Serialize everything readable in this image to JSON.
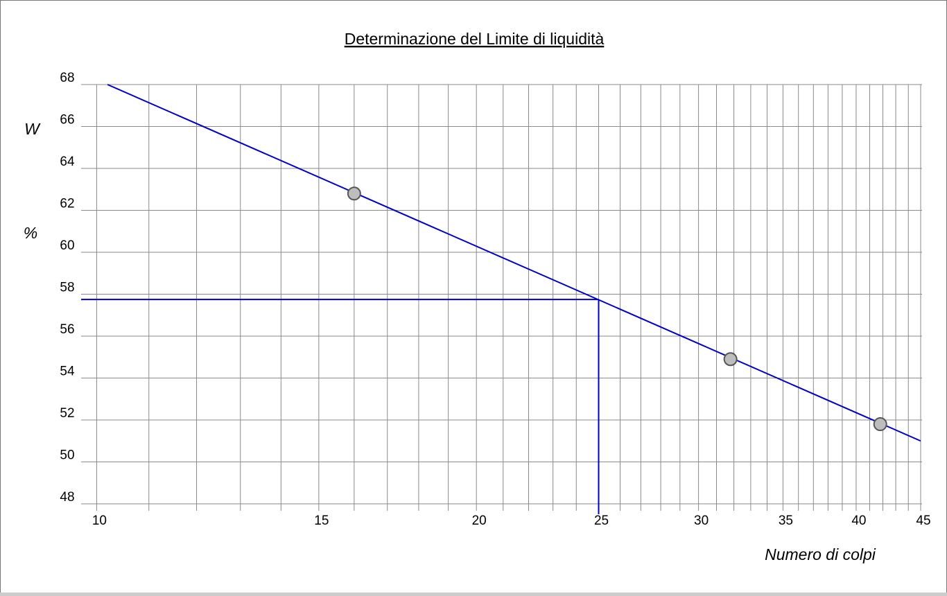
{
  "chart_data": {
    "type": "scatter",
    "title": "Determinazione del Limite di liquidità",
    "y_label_top": "W",
    "y_label_bottom": "%",
    "x_label": "Numero di colpi",
    "log_x": true,
    "xlim": [
      9.72,
      45
    ],
    "ylim": [
      48,
      68
    ],
    "xticks": [
      10,
      15,
      20,
      25,
      30,
      35,
      40,
      45
    ],
    "xminor": [
      10,
      11,
      12,
      13,
      14,
      15,
      16,
      17,
      18,
      19,
      20,
      21,
      22,
      23,
      24,
      25,
      26,
      27,
      28,
      29,
      30,
      31,
      32,
      33,
      34,
      35,
      36,
      37,
      38,
      39,
      40,
      41,
      42,
      43,
      44,
      45
    ],
    "yticks": [
      48,
      50,
      52,
      54,
      56,
      58,
      60,
      62,
      64,
      66,
      68
    ],
    "grid": true,
    "points": {
      "color": "#bdbdbd",
      "x": [
        16,
        31.8,
        41.8
      ],
      "values": [
        62.8,
        54.9,
        51.8
      ]
    },
    "fit_line": {
      "color": "#0000cc",
      "x": [
        10.2,
        45
      ],
      "values": [
        68,
        51
      ]
    },
    "liquid_limit": {
      "color": "#0000cc",
      "x": 25,
      "value": 57.75
    }
  }
}
